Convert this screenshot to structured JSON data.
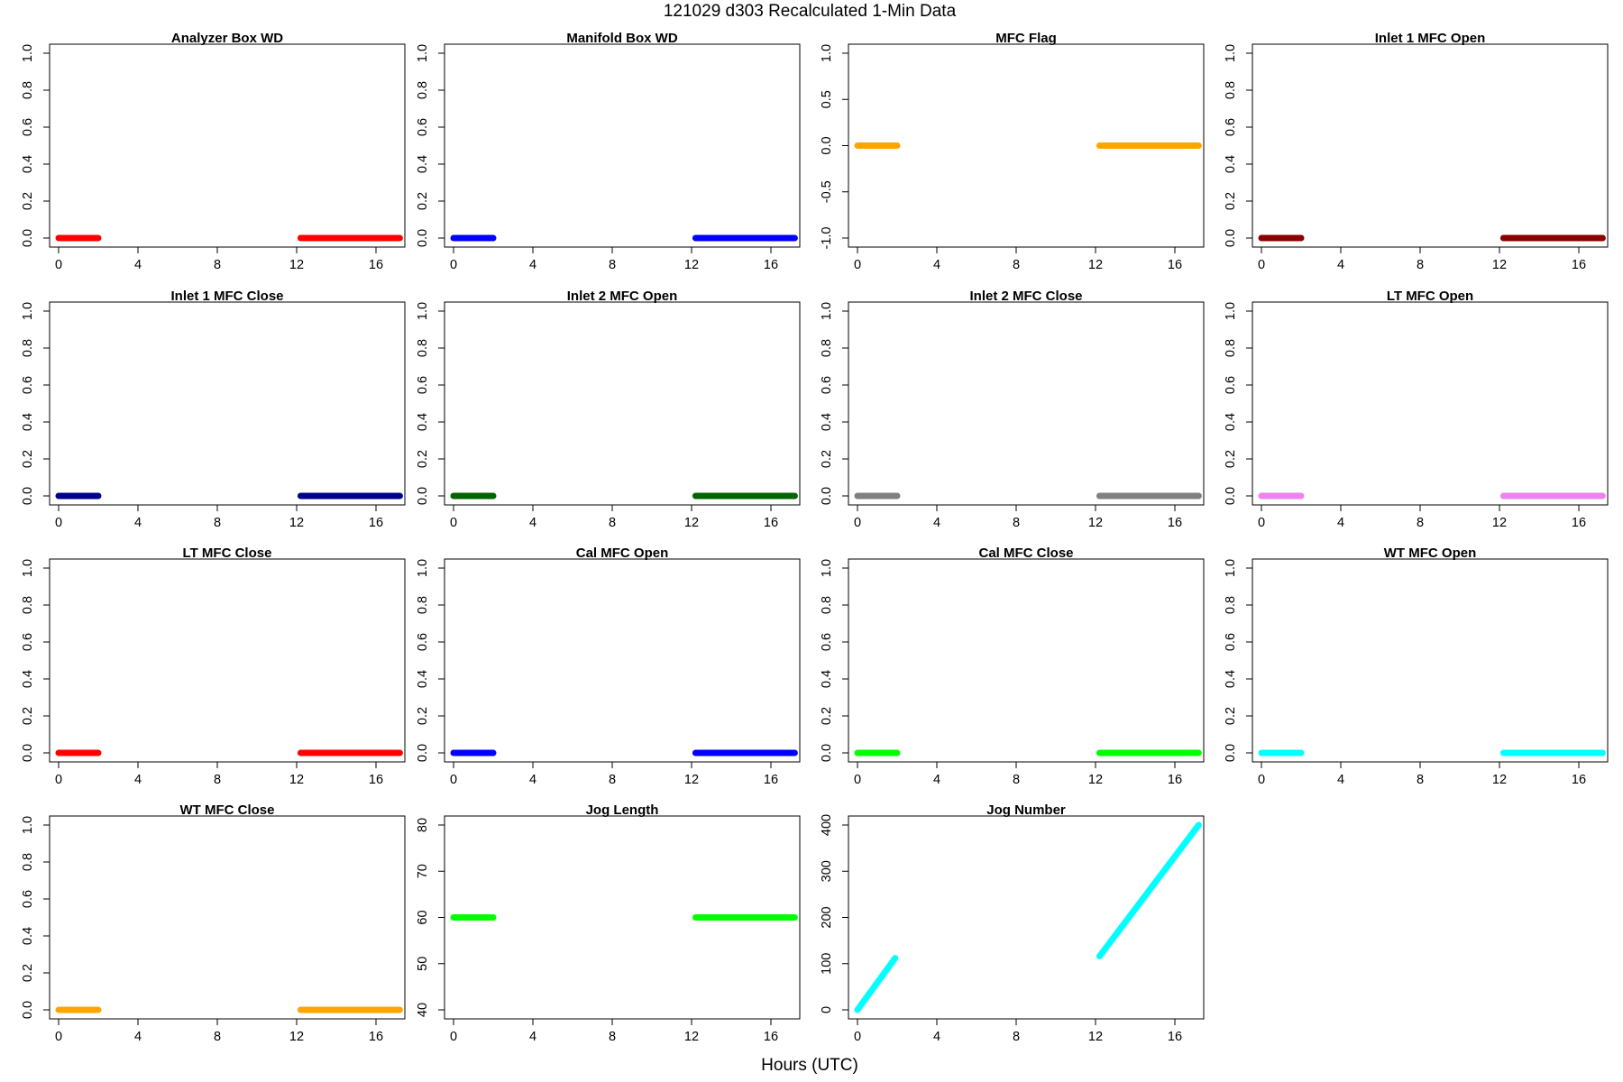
{
  "title": "121029   d303   Recalculated 1-Min Data",
  "xlabel": "Hours (UTC)",
  "chart_data": [
    {
      "type": "line",
      "title": "Analyzer Box WD",
      "color": "#ff0000",
      "xlim": [
        0,
        17
      ],
      "ylim": [
        0,
        1
      ],
      "xticks": [
        0,
        4,
        8,
        12,
        16
      ],
      "yticks": [
        0,
        0.2,
        0.4,
        0.6,
        0.8,
        1
      ],
      "ytick_labels": [
        "0.0",
        "0.2",
        "0.4",
        "0.6",
        "0.8",
        "1.0"
      ],
      "segments": [
        {
          "x": [
            0,
            2
          ],
          "y": [
            0,
            0
          ]
        },
        {
          "x": [
            12.2,
            17.2
          ],
          "y": [
            0,
            0
          ]
        }
      ]
    },
    {
      "type": "line",
      "title": "Manifold Box WD",
      "color": "#0000ff",
      "xlim": [
        0,
        17
      ],
      "ylim": [
        0,
        1
      ],
      "xticks": [
        0,
        4,
        8,
        12,
        16
      ],
      "yticks": [
        0,
        0.2,
        0.4,
        0.6,
        0.8,
        1
      ],
      "ytick_labels": [
        "0.0",
        "0.2",
        "0.4",
        "0.6",
        "0.8",
        "1.0"
      ],
      "segments": [
        {
          "x": [
            0,
            2
          ],
          "y": [
            0,
            0
          ]
        },
        {
          "x": [
            12.2,
            17.2
          ],
          "y": [
            0,
            0
          ]
        }
      ]
    },
    {
      "type": "line",
      "title": "MFC Flag",
      "color": "#ffa500",
      "xlim": [
        0,
        17
      ],
      "ylim": [
        -1,
        1
      ],
      "xticks": [
        0,
        4,
        8,
        12,
        16
      ],
      "yticks": [
        -1,
        -0.5,
        0,
        0.5,
        1
      ],
      "ytick_labels": [
        "-1.0",
        "-0.5",
        "0.0",
        "0.5",
        "1.0"
      ],
      "segments": [
        {
          "x": [
            0,
            2
          ],
          "y": [
            0,
            0
          ]
        },
        {
          "x": [
            12.2,
            17.2
          ],
          "y": [
            0,
            0
          ]
        }
      ]
    },
    {
      "type": "line",
      "title": "Inlet 1 MFC Open",
      "color": "#8b0000",
      "xlim": [
        0,
        17
      ],
      "ylim": [
        0,
        1
      ],
      "xticks": [
        0,
        4,
        8,
        12,
        16
      ],
      "yticks": [
        0,
        0.2,
        0.4,
        0.6,
        0.8,
        1
      ],
      "ytick_labels": [
        "0.0",
        "0.2",
        "0.4",
        "0.6",
        "0.8",
        "1.0"
      ],
      "segments": [
        {
          "x": [
            0,
            2
          ],
          "y": [
            0,
            0
          ]
        },
        {
          "x": [
            12.2,
            17.2
          ],
          "y": [
            0,
            0
          ]
        }
      ]
    },
    {
      "type": "line",
      "title": "Inlet 1 MFC Close",
      "color": "#00008b",
      "xlim": [
        0,
        17
      ],
      "ylim": [
        0,
        1
      ],
      "xticks": [
        0,
        4,
        8,
        12,
        16
      ],
      "yticks": [
        0,
        0.2,
        0.4,
        0.6,
        0.8,
        1
      ],
      "ytick_labels": [
        "0.0",
        "0.2",
        "0.4",
        "0.6",
        "0.8",
        "1.0"
      ],
      "segments": [
        {
          "x": [
            0,
            2
          ],
          "y": [
            0,
            0
          ]
        },
        {
          "x": [
            12.2,
            17.2
          ],
          "y": [
            0,
            0
          ]
        }
      ]
    },
    {
      "type": "line",
      "title": "Inlet 2 MFC Open",
      "color": "#006400",
      "xlim": [
        0,
        17
      ],
      "ylim": [
        0,
        1
      ],
      "xticks": [
        0,
        4,
        8,
        12,
        16
      ],
      "yticks": [
        0,
        0.2,
        0.4,
        0.6,
        0.8,
        1
      ],
      "ytick_labels": [
        "0.0",
        "0.2",
        "0.4",
        "0.6",
        "0.8",
        "1.0"
      ],
      "segments": [
        {
          "x": [
            0,
            2
          ],
          "y": [
            0,
            0
          ]
        },
        {
          "x": [
            12.2,
            17.2
          ],
          "y": [
            0,
            0
          ]
        }
      ]
    },
    {
      "type": "line",
      "title": "Inlet 2 MFC Close",
      "color": "#808080",
      "xlim": [
        0,
        17
      ],
      "ylim": [
        0,
        1
      ],
      "xticks": [
        0,
        4,
        8,
        12,
        16
      ],
      "yticks": [
        0,
        0.2,
        0.4,
        0.6,
        0.8,
        1
      ],
      "ytick_labels": [
        "0.0",
        "0.2",
        "0.4",
        "0.6",
        "0.8",
        "1.0"
      ],
      "segments": [
        {
          "x": [
            0,
            2
          ],
          "y": [
            0,
            0
          ]
        },
        {
          "x": [
            12.2,
            17.2
          ],
          "y": [
            0,
            0
          ]
        }
      ]
    },
    {
      "type": "line",
      "title": "LT MFC Open",
      "color": "#ee82ee",
      "xlim": [
        0,
        17
      ],
      "ylim": [
        0,
        1
      ],
      "xticks": [
        0,
        4,
        8,
        12,
        16
      ],
      "yticks": [
        0,
        0.2,
        0.4,
        0.6,
        0.8,
        1
      ],
      "ytick_labels": [
        "0.0",
        "0.2",
        "0.4",
        "0.6",
        "0.8",
        "1.0"
      ],
      "segments": [
        {
          "x": [
            0,
            2
          ],
          "y": [
            0,
            0
          ]
        },
        {
          "x": [
            12.2,
            17.2
          ],
          "y": [
            0,
            0
          ]
        }
      ]
    },
    {
      "type": "line",
      "title": "LT MFC Close",
      "color": "#ff0000",
      "xlim": [
        0,
        17
      ],
      "ylim": [
        0,
        1
      ],
      "xticks": [
        0,
        4,
        8,
        12,
        16
      ],
      "yticks": [
        0,
        0.2,
        0.4,
        0.6,
        0.8,
        1
      ],
      "ytick_labels": [
        "0.0",
        "0.2",
        "0.4",
        "0.6",
        "0.8",
        "1.0"
      ],
      "segments": [
        {
          "x": [
            0,
            2
          ],
          "y": [
            0,
            0
          ]
        },
        {
          "x": [
            12.2,
            17.2
          ],
          "y": [
            0,
            0
          ]
        }
      ]
    },
    {
      "type": "line",
      "title": "Cal MFC Open",
      "color": "#0000ff",
      "xlim": [
        0,
        17
      ],
      "ylim": [
        0,
        1
      ],
      "xticks": [
        0,
        4,
        8,
        12,
        16
      ],
      "yticks": [
        0,
        0.2,
        0.4,
        0.6,
        0.8,
        1
      ],
      "ytick_labels": [
        "0.0",
        "0.2",
        "0.4",
        "0.6",
        "0.8",
        "1.0"
      ],
      "segments": [
        {
          "x": [
            0,
            2
          ],
          "y": [
            0,
            0
          ]
        },
        {
          "x": [
            12.2,
            17.2
          ],
          "y": [
            0,
            0
          ]
        }
      ]
    },
    {
      "type": "line",
      "title": "Cal MFC Close",
      "color": "#00ff00",
      "xlim": [
        0,
        17
      ],
      "ylim": [
        0,
        1
      ],
      "xticks": [
        0,
        4,
        8,
        12,
        16
      ],
      "yticks": [
        0,
        0.2,
        0.4,
        0.6,
        0.8,
        1
      ],
      "ytick_labels": [
        "0.0",
        "0.2",
        "0.4",
        "0.6",
        "0.8",
        "1.0"
      ],
      "segments": [
        {
          "x": [
            0,
            2
          ],
          "y": [
            0,
            0
          ]
        },
        {
          "x": [
            12.2,
            17.2
          ],
          "y": [
            0,
            0
          ]
        }
      ]
    },
    {
      "type": "line",
      "title": "WT MFC Open",
      "color": "#00ffff",
      "xlim": [
        0,
        17
      ],
      "ylim": [
        0,
        1
      ],
      "xticks": [
        0,
        4,
        8,
        12,
        16
      ],
      "yticks": [
        0,
        0.2,
        0.4,
        0.6,
        0.8,
        1
      ],
      "ytick_labels": [
        "0.0",
        "0.2",
        "0.4",
        "0.6",
        "0.8",
        "1.0"
      ],
      "segments": [
        {
          "x": [
            0,
            2
          ],
          "y": [
            0,
            0
          ]
        },
        {
          "x": [
            12.2,
            17.2
          ],
          "y": [
            0,
            0
          ]
        }
      ]
    },
    {
      "type": "line",
      "title": "WT MFC Close",
      "color": "#ffa500",
      "xlim": [
        0,
        17
      ],
      "ylim": [
        0,
        1
      ],
      "xticks": [
        0,
        4,
        8,
        12,
        16
      ],
      "yticks": [
        0,
        0.2,
        0.4,
        0.6,
        0.8,
        1
      ],
      "ytick_labels": [
        "0.0",
        "0.2",
        "0.4",
        "0.6",
        "0.8",
        "1.0"
      ],
      "segments": [
        {
          "x": [
            0,
            2
          ],
          "y": [
            0,
            0
          ]
        },
        {
          "x": [
            12.2,
            17.2
          ],
          "y": [
            0,
            0
          ]
        }
      ]
    },
    {
      "type": "line",
      "title": "Jog Length",
      "color": "#00ff00",
      "xlim": [
        0,
        17
      ],
      "ylim": [
        40,
        80
      ],
      "xticks": [
        0,
        4,
        8,
        12,
        16
      ],
      "yticks": [
        40,
        50,
        60,
        70,
        80
      ],
      "ytick_labels": [
        "40",
        "50",
        "60",
        "70",
        "80"
      ],
      "segments": [
        {
          "x": [
            0,
            2
          ],
          "y": [
            60,
            60
          ]
        },
        {
          "x": [
            12.2,
            17.2
          ],
          "y": [
            60,
            60
          ]
        }
      ]
    },
    {
      "type": "line",
      "title": "Jog Number",
      "color": "#00ffff",
      "xlim": [
        0,
        17
      ],
      "ylim": [
        0,
        400
      ],
      "xticks": [
        0,
        4,
        8,
        12,
        16
      ],
      "yticks": [
        0,
        100,
        200,
        300,
        400
      ],
      "ytick_labels": [
        "0",
        "100",
        "200",
        "300",
        "400"
      ],
      "segments": [
        {
          "x": [
            0,
            1.9
          ],
          "y": [
            0,
            112
          ]
        },
        {
          "x": [
            12.2,
            17.2
          ],
          "y": [
            116,
            400
          ]
        }
      ]
    }
  ]
}
